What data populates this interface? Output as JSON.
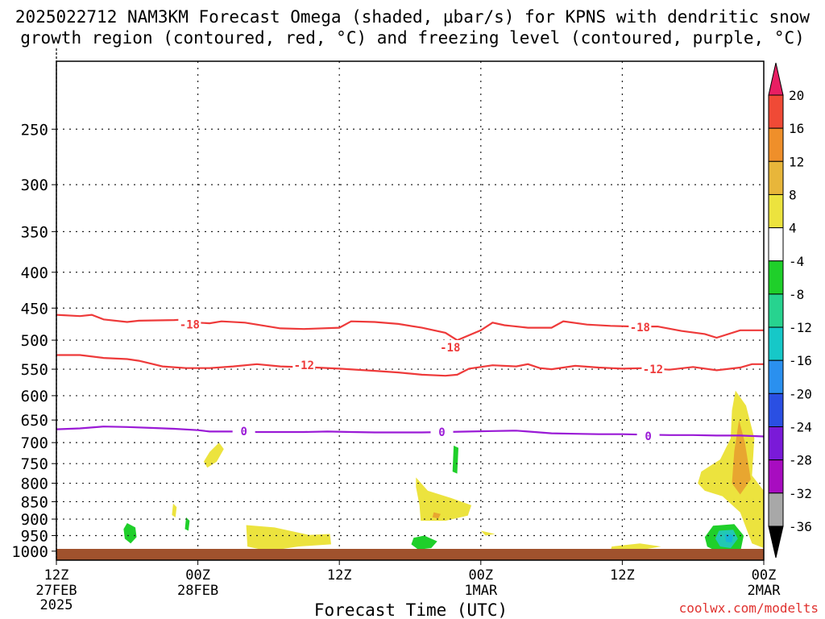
{
  "chart_data": {
    "type": "heatmap",
    "title_line1": "2025022712 NAM3KM Forecast Omega (shaded, μbar/s) for KPNS with dendritic snow",
    "title_line2": "growth region (contoured, red, °C) and freezing level (contoured, purple, °C)",
    "xlabel": "Forecast Time (UTC)",
    "credit": "coolwx.com/modelts",
    "x_range_hours": [
      0,
      60
    ],
    "x_ticks": [
      {
        "hour": 0,
        "label": "12Z",
        "sub": "27FEB",
        "sub2": "2025"
      },
      {
        "hour": 12,
        "label": "00Z",
        "sub": "28FEB",
        "sub2": ""
      },
      {
        "hour": 24,
        "label": "12Z",
        "sub": "",
        "sub2": ""
      },
      {
        "hour": 36,
        "label": "00Z",
        "sub": "1MAR",
        "sub2": ""
      },
      {
        "hour": 48,
        "label": "12Z",
        "sub": "",
        "sub2": ""
      },
      {
        "hour": 60,
        "label": "00Z",
        "sub": "2MAR",
        "sub2": ""
      }
    ],
    "y_range_mb": [
      200,
      1030
    ],
    "y_scale": "log-pressure",
    "y_ticks": [
      250,
      300,
      350,
      400,
      450,
      500,
      550,
      600,
      650,
      700,
      750,
      800,
      850,
      900,
      950,
      1000
    ],
    "grid": true,
    "colorbar": {
      "levels": [
        20,
        16,
        12,
        8,
        4,
        -4,
        -8,
        -12,
        -16,
        -20,
        -24,
        -28,
        -32,
        -36
      ],
      "colors": [
        "#e81e63",
        "#f04a36",
        "#ef8f2a",
        "#e8b63a",
        "#ece33e",
        "#ffffff",
        "#1fcf2a",
        "#27d38f",
        "#16c8c8",
        "#2a90ef",
        "#2a4fe3",
        "#7a1ad8",
        "#a80cc0",
        "#a8a8a8",
        "#000000"
      ]
    },
    "contours": [
      {
        "name": "-18",
        "color": "#ee3a3a",
        "label": "-18",
        "points": [
          [
            0,
            460
          ],
          [
            2,
            462
          ],
          [
            3,
            460
          ],
          [
            4,
            467
          ],
          [
            6,
            471
          ],
          [
            7,
            469
          ],
          [
            10,
            468
          ],
          [
            11,
            467
          ],
          [
            12,
            472
          ],
          [
            13,
            473
          ],
          [
            14,
            470
          ],
          [
            16,
            472
          ],
          [
            18,
            478
          ],
          [
            19,
            481
          ],
          [
            21,
            482
          ],
          [
            24,
            480
          ],
          [
            25,
            470
          ],
          [
            27,
            471
          ],
          [
            29,
            474
          ],
          [
            31,
            480
          ],
          [
            33,
            488
          ],
          [
            34,
            500
          ],
          [
            36,
            484
          ],
          [
            37,
            472
          ],
          [
            38,
            476
          ],
          [
            40,
            480
          ],
          [
            42,
            480
          ],
          [
            43,
            470
          ],
          [
            45,
            475
          ],
          [
            47,
            477
          ],
          [
            49,
            478
          ],
          [
            51,
            478
          ],
          [
            53,
            485
          ],
          [
            55,
            490
          ],
          [
            56,
            496
          ],
          [
            58,
            484
          ],
          [
            60,
            484
          ]
        ],
        "label_at": [
          [
            11.3,
            475
          ],
          [
            33.4,
            512
          ],
          [
            49.5,
            479
          ]
        ]
      },
      {
        "name": "-12",
        "color": "#ee3a3a",
        "label": "-12",
        "points": [
          [
            0,
            525
          ],
          [
            2,
            525
          ],
          [
            4,
            530
          ],
          [
            6,
            532
          ],
          [
            7,
            535
          ],
          [
            8,
            540
          ],
          [
            9,
            545
          ],
          [
            11,
            548
          ],
          [
            13,
            548
          ],
          [
            15,
            545
          ],
          [
            17,
            541
          ],
          [
            19,
            545
          ],
          [
            22,
            547
          ],
          [
            24,
            549
          ],
          [
            27,
            553
          ],
          [
            29,
            556
          ],
          [
            31,
            560
          ],
          [
            33,
            562
          ],
          [
            34,
            560
          ],
          [
            35,
            549
          ],
          [
            37,
            543
          ],
          [
            39,
            545
          ],
          [
            40,
            541
          ],
          [
            41,
            548
          ],
          [
            42,
            550
          ],
          [
            44,
            544
          ],
          [
            46,
            547
          ],
          [
            48,
            549
          ],
          [
            50,
            548
          ],
          [
            52,
            551
          ],
          [
            54,
            546
          ],
          [
            56,
            552
          ],
          [
            58,
            547
          ],
          [
            59,
            541
          ],
          [
            60,
            541
          ]
        ],
        "label_at": [
          [
            21.0,
            543
          ],
          [
            50.6,
            550
          ]
        ]
      },
      {
        "name": "0",
        "color": "#9a1ad6",
        "label": "0",
        "points": [
          [
            0,
            670
          ],
          [
            2,
            668
          ],
          [
            4,
            664
          ],
          [
            6,
            665
          ],
          [
            8,
            667
          ],
          [
            10,
            669
          ],
          [
            12,
            672
          ],
          [
            13,
            675
          ],
          [
            15,
            675
          ],
          [
            17,
            676
          ],
          [
            19,
            676
          ],
          [
            21,
            676
          ],
          [
            23,
            675
          ],
          [
            25,
            676
          ],
          [
            27,
            677
          ],
          [
            29,
            677
          ],
          [
            31,
            677
          ],
          [
            33,
            676
          ],
          [
            35,
            675
          ],
          [
            37,
            674
          ],
          [
            39,
            673
          ],
          [
            40,
            675
          ],
          [
            42,
            679
          ],
          [
            44,
            680
          ],
          [
            46,
            681
          ],
          [
            48,
            681
          ],
          [
            50,
            682
          ],
          [
            52,
            683
          ],
          [
            54,
            683
          ],
          [
            56,
            684
          ],
          [
            58,
            684
          ],
          [
            60,
            686
          ]
        ],
        "label_at": [
          [
            15.9,
            674
          ],
          [
            32.7,
            676
          ],
          [
            50.2,
            685
          ]
        ]
      }
    ],
    "shaded_regions": [
      {
        "level": "4 to 8 (sinking)",
        "color": "#ece33e",
        "desc": "scattered ascent/descent blobs"
      },
      {
        "level": "-4 to -8 (rising)",
        "color": "#1fcf2a",
        "desc": "scattered rising blobs"
      },
      {
        "level": "-8 to -12",
        "color": "#27d38f",
        "desc": "core near 2MAR 00Z"
      },
      {
        "level": "-12 to -16",
        "color": "#16c8c8",
        "desc": "core near 2MAR 00Z"
      }
    ]
  }
}
